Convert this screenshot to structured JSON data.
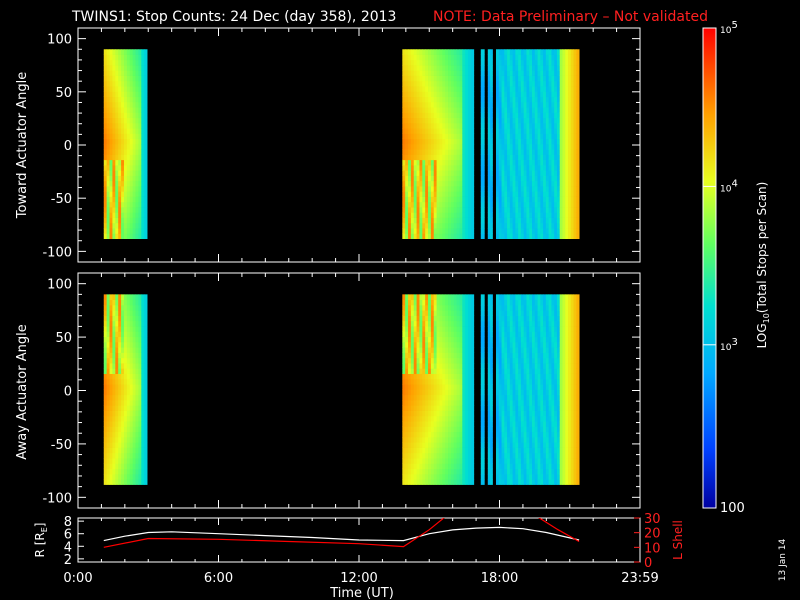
{
  "header": {
    "title": "TWINS1: Stop Counts: 24 Dec (day 358), 2013",
    "note": "NOTE: Data Preliminary – Not validated"
  },
  "chart_data": [
    {
      "type": "heatmap",
      "panel": "toward",
      "ylabel": "Toward Actuator Angle",
      "ylim": [
        -110,
        110
      ],
      "yticks": [
        "100",
        "50",
        "0",
        "-50",
        "-100"
      ],
      "xlim_hours": [
        0,
        24
      ],
      "data_coverage_hours": [
        [
          1.1,
          2.95
        ],
        [
          13.85,
          16.9
        ],
        [
          17.2,
          17.35
        ],
        [
          17.5,
          17.7
        ],
        [
          17.85,
          21.4
        ]
      ]
    },
    {
      "type": "heatmap",
      "panel": "away",
      "ylabel": "Away Actuator Angle",
      "ylim": [
        -110,
        110
      ],
      "yticks": [
        "100",
        "50",
        "0",
        "-50",
        "-100"
      ],
      "xlim_hours": [
        0,
        24
      ],
      "data_coverage_hours": [
        [
          1.1,
          2.95
        ],
        [
          13.85,
          16.9
        ],
        [
          17.2,
          17.35
        ],
        [
          17.5,
          17.7
        ],
        [
          17.85,
          21.4
        ]
      ]
    },
    {
      "type": "line",
      "panel": "ephemeris",
      "ylabel_left": "R [R",
      "ylabel_left_sub": "E",
      "ylabel_left_end": "]",
      "ylabel_right": "L Shell",
      "yticks_left": [
        "8",
        "6",
        "4",
        "2"
      ],
      "yticks_right": [
        "30",
        "20",
        "10",
        "0"
      ],
      "ylim_left": [
        1.5,
        8.5
      ],
      "ylim_right": [
        0,
        30
      ],
      "x_ticks": [
        "0:00",
        "6:00",
        "12:00",
        "18:00",
        "23:59"
      ],
      "xlabel": "Time (UT)",
      "series": [
        {
          "color": "#ffffff",
          "x": [
            1.1,
            2,
            3,
            4,
            6,
            8,
            10,
            12,
            13.9,
            15,
            16,
            17,
            18,
            19,
            20,
            21.4
          ],
          "y": [
            4.9,
            5.6,
            6.2,
            6.3,
            6.0,
            5.7,
            5.4,
            5.0,
            4.9,
            6.0,
            6.6,
            6.9,
            7.0,
            6.8,
            6.2,
            5.0
          ]
        },
        {
          "color": "#ff0000",
          "x": [
            1.1,
            3,
            6,
            9,
            12,
            13.9,
            15,
            15.7,
            19.6,
            20.5,
            21.4
          ],
          "y": [
            10,
            16,
            15.5,
            14,
            12.5,
            10.5,
            22,
            31,
            31,
            22,
            14
          ]
        }
      ]
    },
    {
      "type": "colorbar",
      "label": "LOG10(Total Stops per Scan)",
      "label_prefix": "LOG",
      "label_sub": "10",
      "label_rest": "(Total Stops per Scan)",
      "tick_base": "10",
      "ticks": [
        "5",
        "4",
        "3"
      ],
      "bottom_label": "100"
    }
  ],
  "footer": {
    "date_stamp": "13 Jan 14"
  }
}
